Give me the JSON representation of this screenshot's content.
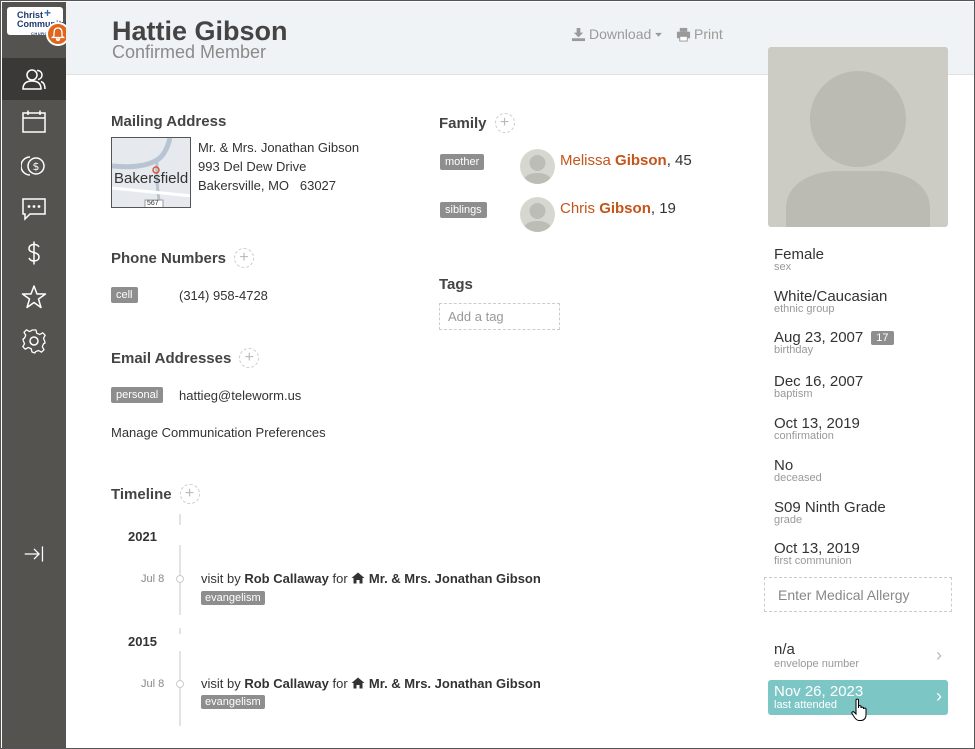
{
  "logo": {
    "line1": "Christ",
    "line2": "Community",
    "line3": "CHURCH"
  },
  "sidebar": {
    "items": [
      {
        "icon": "people-icon",
        "active": true
      },
      {
        "icon": "calendar-icon"
      },
      {
        "icon": "giving-coin-icon"
      },
      {
        "icon": "chat-icon"
      },
      {
        "icon": "dollar-icon"
      },
      {
        "icon": "star-icon"
      },
      {
        "icon": "gear-icon"
      },
      {
        "icon": "collapse-arrow-icon"
      }
    ]
  },
  "header": {
    "name": "Hattie Gibson",
    "status": "Confirmed Member",
    "download_label": "Download",
    "print_label": "Print"
  },
  "mailing": {
    "title": "Mailing Address",
    "household_link": "Mr. & Mrs. Jonathan Gibson",
    "street": "993 Del Dew Drive",
    "city_line": "Bakersville, MO   63027",
    "map_label": "Bakersfield",
    "map_road": "567"
  },
  "phones": {
    "title": "Phone Numbers",
    "items": [
      {
        "type": "cell",
        "number": "(314) 958-4728"
      }
    ]
  },
  "emails": {
    "title": "Email Addresses",
    "items": [
      {
        "type": "personal",
        "address": "hattieg@teleworm.us"
      }
    ],
    "manage_link": "Manage Communication Preferences"
  },
  "family": {
    "title": "Family",
    "members": [
      {
        "relation": "mother",
        "first": "Melissa",
        "last": "Gibson",
        "age": ", 45"
      },
      {
        "relation": "siblings",
        "first": "Chris",
        "last": "Gibson",
        "age": ", 19"
      }
    ]
  },
  "tags": {
    "title": "Tags",
    "placeholder": "Add a tag"
  },
  "timeline": {
    "title": "Timeline",
    "years": [
      {
        "year": "2021",
        "entries": [
          {
            "date": "Jul 8",
            "prefix": "visit by ",
            "person": "Rob Callaway",
            "mid": " for ",
            "household": "Mr. & Mrs. Jonathan Gibson",
            "tag": "evangelism"
          }
        ]
      },
      {
        "year": "2015",
        "entries": [
          {
            "date": "Jul 8",
            "prefix": "visit by ",
            "person": "Rob Callaway",
            "mid": " for ",
            "household": "Mr. & Mrs. Jonathan Gibson",
            "tag": "evangelism"
          }
        ]
      }
    ]
  },
  "facts": [
    {
      "value": "Female",
      "label": "sex"
    },
    {
      "value": "White/Caucasian",
      "label": "ethnic group"
    },
    {
      "value": "Aug 23, 2007",
      "label": "birthday",
      "badge": "17"
    },
    {
      "value": "Dec 16, 2007",
      "label": "baptism"
    },
    {
      "value": "Oct 13, 2019",
      "label": "confirmation"
    },
    {
      "value": "No",
      "label": "deceased"
    },
    {
      "value": "S09 Ninth Grade",
      "label": "grade"
    },
    {
      "value": "Oct 13, 2019",
      "label": "first communion"
    }
  ],
  "allergy": {
    "placeholder": "Enter Medical Allergy"
  },
  "envelope": {
    "value": "n/a",
    "label": "envelope number"
  },
  "attended": {
    "value": "Nov 26, 2023",
    "label": "last attended"
  },
  "colors": {
    "accent": "#c4541a",
    "sidebar": "#55534f",
    "attended": "#7cc6c5",
    "bell": "#e0661e"
  }
}
